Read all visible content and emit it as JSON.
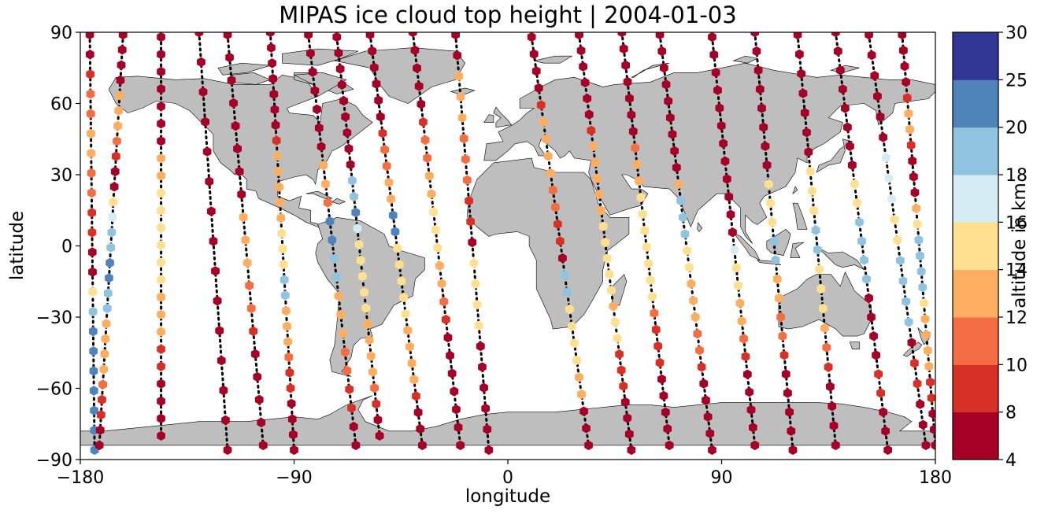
{
  "chart_data": {
    "type": "scatter",
    "title": "MIPAS ice cloud top height | 2004-01-03",
    "xlabel": "longitude",
    "ylabel": "latitude",
    "xlim": [
      -180,
      180
    ],
    "ylim": [
      -90,
      90
    ],
    "xticks": [
      "−180",
      "−90",
      "0",
      "90",
      "180"
    ],
    "yticks": [
      "90",
      "60",
      "30",
      "0",
      "−30",
      "−60",
      "−90"
    ],
    "grid": false,
    "land_color": "#bebebe",
    "ocean_color": "#ffffff",
    "colorbar": {
      "label": "altitude in km",
      "ticks": [
        "4",
        "8",
        "10",
        "12",
        "14",
        "16",
        "18",
        "20",
        "25",
        "30"
      ],
      "colors": [
        "#a50026",
        "#d73027",
        "#f46d43",
        "#fdae61",
        "#fee090",
        "#ffffbf",
        "#e0f3f8",
        "#abd9e9",
        "#74add1",
        "#313695"
      ],
      "bins": [
        [
          4,
          8
        ],
        [
          8,
          10
        ],
        [
          10,
          12
        ],
        [
          12,
          14
        ],
        [
          14,
          16
        ],
        [
          16,
          18
        ],
        [
          18,
          20
        ],
        [
          20,
          25
        ],
        [
          25,
          30
        ]
      ],
      "bin_colors": [
        "#a50026",
        "#d73027",
        "#f46d43",
        "#fdae61",
        "#fee090",
        "#d6ecf3",
        "#90c3df",
        "#4f84bb",
        "#313695"
      ]
    },
    "orbits": [
      {
        "lon0": -176,
        "lat_top": 89,
        "lat_bot": -86,
        "drift": 2,
        "alts": [
          7,
          7,
          9,
          10,
          11,
          12,
          12,
          11,
          10,
          9,
          8,
          7,
          7,
          15,
          18,
          20,
          20,
          20,
          20,
          20,
          20,
          20
        ]
      },
      {
        "lon0": -162,
        "lat_top": 89,
        "lat_bot": -84,
        "drift": -10,
        "alts": [
          7,
          7,
          6,
          7,
          12,
          12,
          12,
          10,
          9,
          7,
          7,
          15,
          17,
          19,
          19,
          20,
          20,
          19,
          18,
          13,
          13,
          12,
          12,
          10,
          9,
          8,
          7,
          7
        ]
      },
      {
        "lon0": -146,
        "lat_top": 88,
        "lat_bot": -80,
        "drift": 0,
        "alts": [
          7,
          7,
          7,
          7,
          7,
          6,
          6,
          13,
          13,
          14,
          14,
          15,
          15,
          15,
          15,
          13,
          13,
          13,
          9,
          9,
          7,
          7,
          7,
          6
        ]
      },
      {
        "lon0": -130,
        "lat_top": 90,
        "lat_bot": -86,
        "drift": 12,
        "alts": [
          7,
          7,
          7,
          7,
          7,
          6,
          7,
          7,
          6,
          7,
          7,
          7,
          6,
          6,
          6
        ]
      },
      {
        "lon0": -118,
        "lat_top": 89,
        "lat_bot": -84,
        "drift": 15,
        "alts": [
          7,
          7,
          7,
          7,
          7,
          7,
          7,
          7,
          12,
          12,
          12,
          11,
          10,
          8,
          7,
          7,
          7,
          7,
          6
        ]
      },
      {
        "lon0": -100,
        "lat_top": 90,
        "lat_bot": -86,
        "drift": 10,
        "alts": [
          7,
          7,
          7,
          7,
          7,
          7,
          7,
          8,
          12,
          13,
          13,
          13,
          13,
          14,
          14,
          14,
          19,
          19,
          13,
          13,
          12,
          11,
          9,
          8,
          7,
          7,
          6,
          6
        ]
      },
      {
        "lon0": -84,
        "lat_top": 89,
        "lat_bot": -84,
        "drift": 20,
        "alts": [
          7,
          7,
          7,
          7,
          7,
          6,
          7,
          12,
          12,
          11,
          20,
          20,
          18,
          19,
          13,
          12,
          12,
          11,
          10,
          9,
          8,
          7,
          7
        ]
      },
      {
        "lon0": -72,
        "lat_top": 88,
        "lat_bot": -80,
        "drift": 18,
        "alts": [
          7,
          7,
          7,
          7,
          7,
          7,
          7,
          6,
          7,
          19,
          19,
          20,
          16,
          14,
          14,
          14,
          14,
          14,
          13,
          13,
          13,
          12,
          11,
          9,
          7,
          7
        ]
      },
      {
        "lon0": -58,
        "lat_top": 89,
        "lat_bot": -84,
        "drift": 22,
        "alts": [
          7,
          7,
          7,
          7,
          7,
          7,
          9,
          11,
          11,
          12,
          13,
          20,
          20,
          15,
          15,
          15,
          14,
          14,
          13,
          13,
          12,
          12,
          9,
          7,
          7,
          7
        ]
      },
      {
        "lon0": -40,
        "lat_top": 90,
        "lat_bot": -84,
        "drift": 20,
        "alts": [
          7,
          7,
          7,
          7,
          7,
          9,
          11,
          11,
          12,
          13,
          14,
          14,
          14,
          13,
          12,
          11,
          9,
          7,
          7,
          7,
          6,
          7,
          7,
          6
        ]
      },
      {
        "lon0": -22,
        "lat_top": 89,
        "lat_bot": -86,
        "drift": 14,
        "alts": [
          7,
          7,
          12,
          12,
          12,
          11,
          11,
          10,
          9,
          8,
          7,
          15,
          15,
          15,
          15,
          7,
          7,
          7,
          7,
          7,
          6
        ]
      },
      {
        "lon0": 10,
        "lat_top": 88,
        "lat_bot": -84,
        "drift": 24,
        "alts": [
          7,
          7,
          7,
          7,
          9,
          12,
          12,
          13,
          12,
          11,
          10,
          9,
          8,
          7,
          19,
          19,
          14,
          14,
          14,
          15,
          13,
          12,
          7,
          7,
          7
        ]
      },
      {
        "lon0": 30,
        "lat_top": 89,
        "lat_bot": -86,
        "drift": 22,
        "alts": [
          7,
          7,
          7,
          7,
          7,
          7,
          9,
          12,
          12,
          12,
          13,
          13,
          15,
          15,
          15,
          15,
          14,
          13,
          14,
          14,
          8,
          9,
          9,
          7,
          7,
          7,
          7
        ]
      },
      {
        "lon0": 48,
        "lat_top": 90,
        "lat_bot": -84,
        "drift": 20,
        "alts": [
          7,
          7,
          7,
          7,
          7,
          7,
          7,
          11,
          13,
          12,
          15,
          15,
          15,
          15,
          15,
          15,
          14,
          10,
          9,
          9,
          8,
          7,
          7,
          7,
          7,
          6
        ]
      },
      {
        "lon0": 64,
        "lat_top": 89,
        "lat_bot": -86,
        "drift": 22,
        "alts": [
          7,
          7,
          7,
          7,
          7,
          7,
          7,
          7,
          7,
          12,
          19,
          19,
          19,
          14,
          14,
          13,
          13,
          12,
          11,
          10,
          9,
          7,
          7,
          7,
          7,
          6
        ]
      },
      {
        "lon0": 86,
        "lat_top": 88,
        "lat_bot": -84,
        "drift": 18,
        "alts": [
          7,
          7,
          7,
          7,
          7,
          7,
          7,
          7,
          7,
          7,
          7,
          7,
          16,
          14,
          14,
          13,
          13,
          10,
          9,
          7,
          7,
          7,
          7,
          6
        ]
      },
      {
        "lon0": 104,
        "lat_top": 90,
        "lat_bot": -86,
        "drift": 16,
        "alts": [
          7,
          7,
          7,
          7,
          7,
          7,
          7,
          7,
          15,
          15,
          15,
          18,
          18,
          12,
          12,
          11,
          10,
          9,
          7,
          7,
          7,
          7,
          6
        ]
      },
      {
        "lon0": 122,
        "lat_top": 89,
        "lat_bot": -84,
        "drift": 16,
        "alts": [
          7,
          7,
          7,
          7,
          7,
          7,
          7,
          15,
          15,
          15,
          19,
          19,
          15,
          15,
          15,
          12,
          11,
          9,
          7,
          7,
          7,
          6
        ]
      },
      {
        "lon0": 138,
        "lat_top": 90,
        "lat_bot": -86,
        "drift": 22,
        "alts": [
          7,
          7,
          7,
          7,
          7,
          7,
          7,
          7,
          15,
          15,
          19,
          19,
          18,
          18,
          7,
          7,
          7,
          7,
          9,
          8,
          7,
          7,
          6
        ]
      },
      {
        "lon0": 152,
        "lat_top": 89,
        "lat_bot": -84,
        "drift": 24,
        "alts": [
          7,
          7,
          7,
          7,
          7,
          7,
          17,
          17,
          17,
          15,
          15,
          19,
          19,
          19,
          18,
          7,
          8,
          9,
          7,
          7,
          7
        ]
      },
      {
        "lon0": 166,
        "lat_top": 89,
        "lat_bot": -84,
        "drift": 14,
        "alts": [
          7,
          7,
          7,
          7,
          9,
          12,
          12,
          9,
          7,
          7,
          7,
          12,
          15,
          19,
          19,
          19,
          19,
          14,
          13,
          13,
          12,
          12,
          9,
          8,
          7,
          7,
          7
        ]
      }
    ]
  }
}
